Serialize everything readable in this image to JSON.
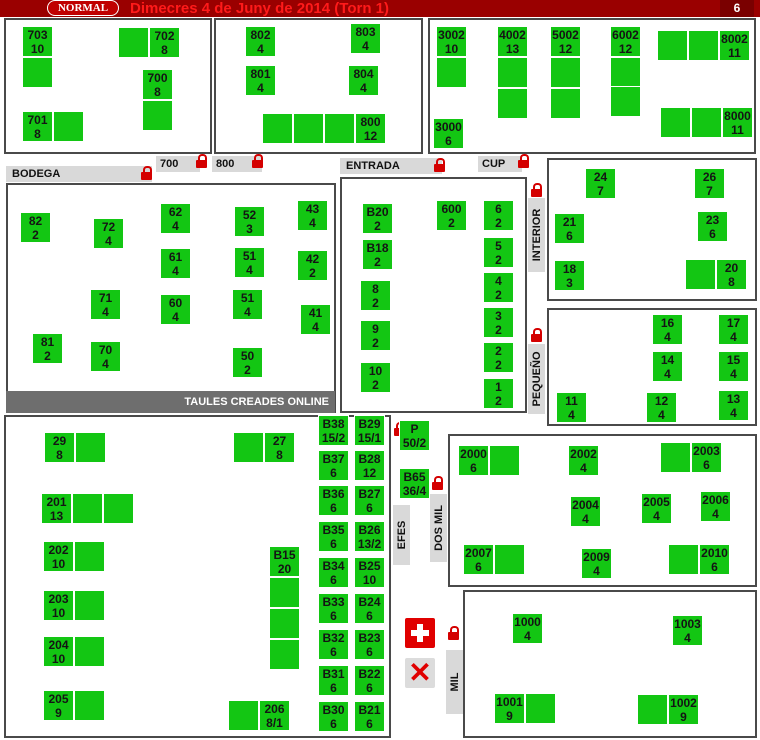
{
  "header": {
    "mode_badge": "NORMAL",
    "title": "Dimecres 4 de Juny de 2014 (Torn 1)",
    "page_number": "6"
  },
  "zones": {
    "bodega": "BODEGA",
    "z700": "700",
    "z800": "800",
    "entrada": "ENTRADA",
    "cup": "CUP",
    "interior": "INTERIOR",
    "pequeno": "PEQUEÑO",
    "efes": "EFES",
    "dosmil": "DOS MIL",
    "mil": "MIL",
    "online": "TAULES CREADES ONLINE"
  },
  "tables": [
    {
      "name": "703",
      "seats": "10"
    },
    {
      "name": "702",
      "seats": "8"
    },
    {
      "name": "700",
      "seats": "8"
    },
    {
      "name": "701",
      "seats": "8"
    },
    {
      "name": "802",
      "seats": "4"
    },
    {
      "name": "803",
      "seats": "4"
    },
    {
      "name": "801",
      "seats": "4"
    },
    {
      "name": "804",
      "seats": "4"
    },
    {
      "name": "800",
      "seats": "12"
    },
    {
      "name": "3002",
      "seats": "10"
    },
    {
      "name": "4002",
      "seats": "13"
    },
    {
      "name": "5002",
      "seats": "12"
    },
    {
      "name": "6002",
      "seats": "12"
    },
    {
      "name": "8002",
      "seats": "11"
    },
    {
      "name": "3000",
      "seats": "6"
    },
    {
      "name": "8000",
      "seats": "11"
    },
    {
      "name": "82",
      "seats": "2"
    },
    {
      "name": "72",
      "seats": "4"
    },
    {
      "name": "62",
      "seats": "4"
    },
    {
      "name": "52",
      "seats": "3"
    },
    {
      "name": "43",
      "seats": "4"
    },
    {
      "name": "61",
      "seats": "4"
    },
    {
      "name": "51",
      "seats": "4"
    },
    {
      "name": "42",
      "seats": "2"
    },
    {
      "name": "71",
      "seats": "4"
    },
    {
      "name": "60",
      "seats": "4"
    },
    {
      "name": "51",
      "seats": "4"
    },
    {
      "name": "41",
      "seats": "4"
    },
    {
      "name": "81",
      "seats": "2"
    },
    {
      "name": "70",
      "seats": "4"
    },
    {
      "name": "50",
      "seats": "2"
    },
    {
      "name": "B20",
      "seats": "2"
    },
    {
      "name": "600",
      "seats": "2"
    },
    {
      "name": "6",
      "seats": "2"
    },
    {
      "name": "B18",
      "seats": "2"
    },
    {
      "name": "5",
      "seats": "2"
    },
    {
      "name": "8",
      "seats": "2"
    },
    {
      "name": "4",
      "seats": "2"
    },
    {
      "name": "9",
      "seats": "2"
    },
    {
      "name": "3",
      "seats": "2"
    },
    {
      "name": "2",
      "seats": "2"
    },
    {
      "name": "10",
      "seats": "2"
    },
    {
      "name": "1",
      "seats": "2"
    },
    {
      "name": "24",
      "seats": "7"
    },
    {
      "name": "26",
      "seats": "7"
    },
    {
      "name": "21",
      "seats": "6"
    },
    {
      "name": "23",
      "seats": "6"
    },
    {
      "name": "18",
      "seats": "3"
    },
    {
      "name": "20",
      "seats": "8"
    },
    {
      "name": "16",
      "seats": "4"
    },
    {
      "name": "17",
      "seats": "4"
    },
    {
      "name": "14",
      "seats": "4"
    },
    {
      "name": "15",
      "seats": "4"
    },
    {
      "name": "11",
      "seats": "4"
    },
    {
      "name": "12",
      "seats": "4"
    },
    {
      "name": "13",
      "seats": "4"
    },
    {
      "name": "29",
      "seats": "8"
    },
    {
      "name": "27",
      "seats": "8"
    },
    {
      "name": "201",
      "seats": "13"
    },
    {
      "name": "202",
      "seats": "10"
    },
    {
      "name": "203",
      "seats": "10"
    },
    {
      "name": "204",
      "seats": "10"
    },
    {
      "name": "205",
      "seats": "9"
    },
    {
      "name": "206",
      "seats": "8/1"
    },
    {
      "name": "B15",
      "seats": "20"
    },
    {
      "name": "B38",
      "seats": "15/2"
    },
    {
      "name": "B29",
      "seats": "15/1"
    },
    {
      "name": "B37",
      "seats": "6"
    },
    {
      "name": "B28",
      "seats": "12"
    },
    {
      "name": "B36",
      "seats": "6"
    },
    {
      "name": "B27",
      "seats": "6"
    },
    {
      "name": "B35",
      "seats": "6"
    },
    {
      "name": "B26",
      "seats": "13/2"
    },
    {
      "name": "B34",
      "seats": "6"
    },
    {
      "name": "B25",
      "seats": "10"
    },
    {
      "name": "B33",
      "seats": "6"
    },
    {
      "name": "B24",
      "seats": "6"
    },
    {
      "name": "B32",
      "seats": "6"
    },
    {
      "name": "B23",
      "seats": "6"
    },
    {
      "name": "B31",
      "seats": "6"
    },
    {
      "name": "B22",
      "seats": "6"
    },
    {
      "name": "B30",
      "seats": "6"
    },
    {
      "name": "B21",
      "seats": "6"
    },
    {
      "name": "P",
      "seats": "50/2"
    },
    {
      "name": "B65",
      "seats": "36/4"
    },
    {
      "name": "2000",
      "seats": "6"
    },
    {
      "name": "2002",
      "seats": "4"
    },
    {
      "name": "2003",
      "seats": "6"
    },
    {
      "name": "2004",
      "seats": "4"
    },
    {
      "name": "2005",
      "seats": "4"
    },
    {
      "name": "2006",
      "seats": "4"
    },
    {
      "name": "2007",
      "seats": "6"
    },
    {
      "name": "2009",
      "seats": "4"
    },
    {
      "name": "2010",
      "seats": "6"
    },
    {
      "name": "1000",
      "seats": "4"
    },
    {
      "name": "1003",
      "seats": "4"
    },
    {
      "name": "1001",
      "seats": "9"
    },
    {
      "name": "1002",
      "seats": "9"
    }
  ],
  "actions": {
    "add_icon": "plus-icon",
    "delete_icon": "close-icon",
    "delete_glyph": "✕"
  },
  "colors": {
    "table": "#13c613",
    "header": "#9a0000",
    "lock": "#d40000"
  }
}
